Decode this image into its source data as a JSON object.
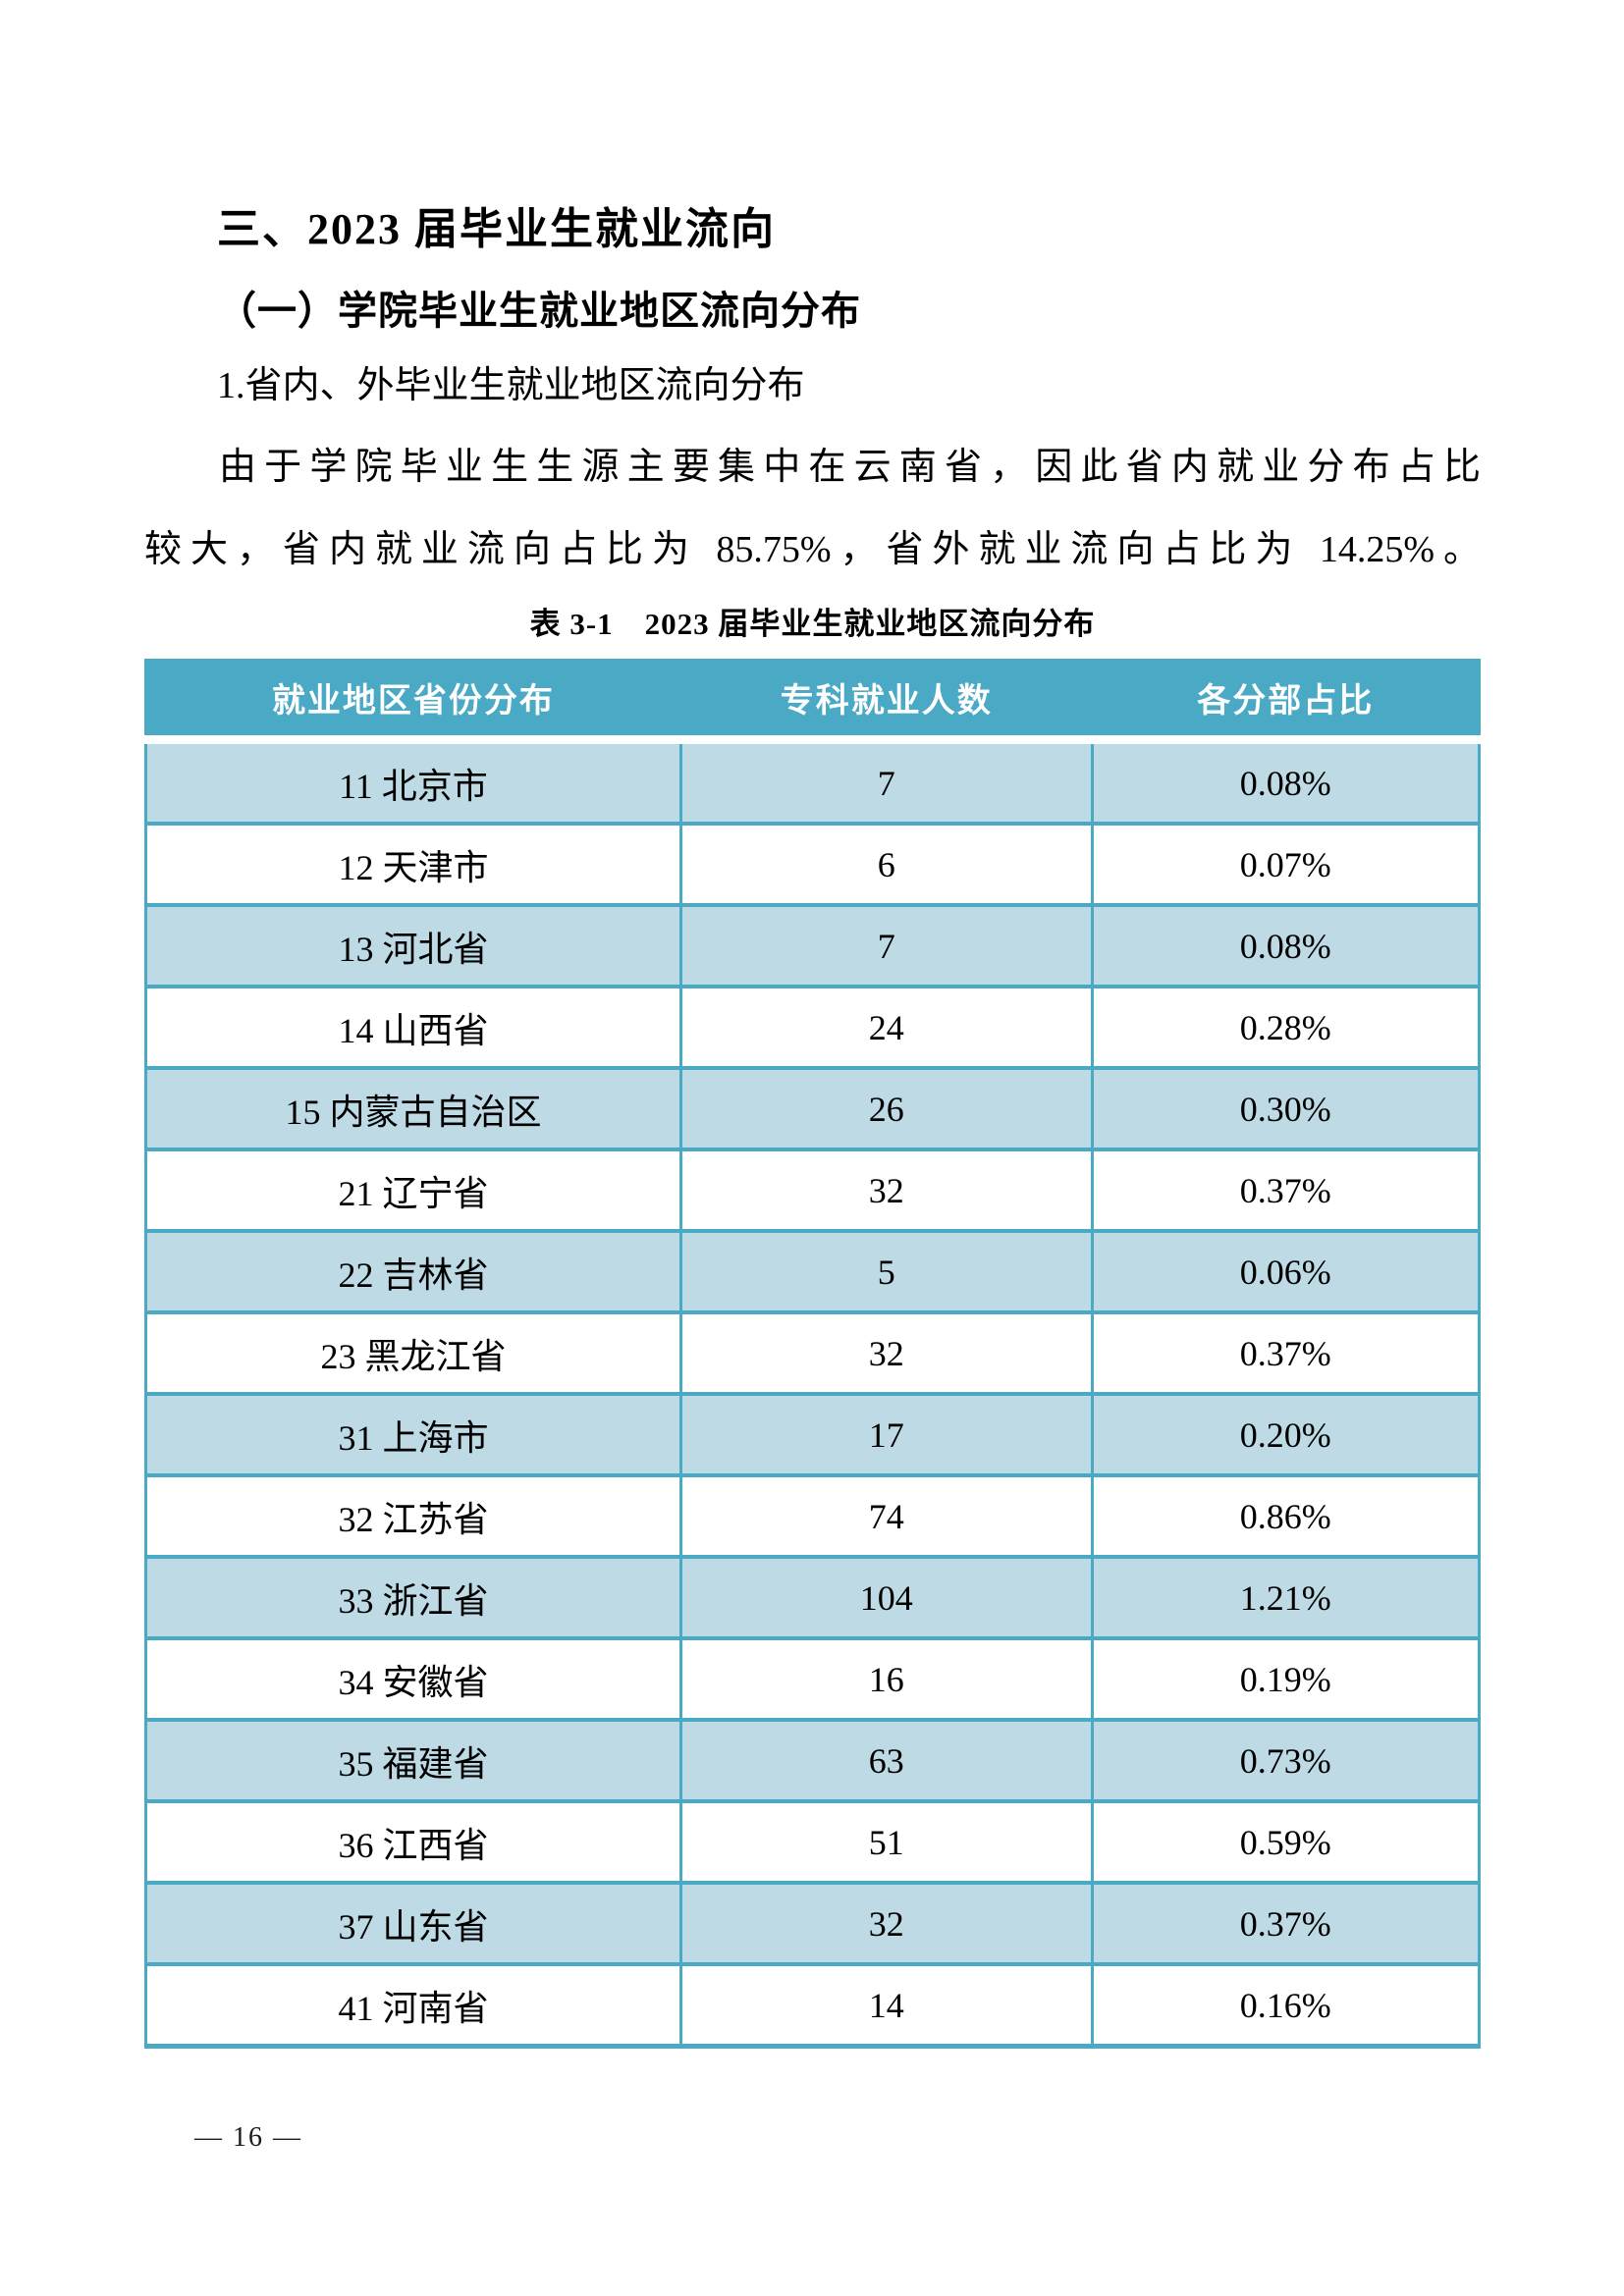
{
  "headings": {
    "h1": "三、2023 届毕业生就业流向",
    "h2": "（一）学院毕业生就业地区流向分布",
    "h3": "1.省内、外毕业生就业地区流向分布"
  },
  "paragraph": {
    "line1": "由于学院毕业生生源主要集中在云南省，因此省内就业分布占比",
    "line2": "较大，省内就业流向占比为 85.75%，省外就业流向占比为 14.25%。"
  },
  "table": {
    "caption": "表 3-1　2023 届毕业生就业地区流向分布",
    "columns": [
      "就业地区省份分布",
      "专科就业人数",
      "各分部占比"
    ],
    "rows": [
      [
        "11 北京市",
        "7",
        "0.08%"
      ],
      [
        "12 天津市",
        "6",
        "0.07%"
      ],
      [
        "13 河北省",
        "7",
        "0.08%"
      ],
      [
        "14 山西省",
        "24",
        "0.28%"
      ],
      [
        "15 内蒙古自治区",
        "26",
        "0.30%"
      ],
      [
        "21 辽宁省",
        "32",
        "0.37%"
      ],
      [
        "22 吉林省",
        "5",
        "0.06%"
      ],
      [
        "23 黑龙江省",
        "32",
        "0.37%"
      ],
      [
        "31 上海市",
        "17",
        "0.20%"
      ],
      [
        "32 江苏省",
        "74",
        "0.86%"
      ],
      [
        "33 浙江省",
        "104",
        "1.21%"
      ],
      [
        "34 安徽省",
        "16",
        "0.19%"
      ],
      [
        "35 福建省",
        "63",
        "0.73%"
      ],
      [
        "36 江西省",
        "51",
        "0.59%"
      ],
      [
        "37 山东省",
        "32",
        "0.37%"
      ],
      [
        "41 河南省",
        "14",
        "0.16%"
      ]
    ],
    "colors": {
      "header_bg": "#4aa9c4",
      "header_text": "#ffffff",
      "row_bg": "#ffffff",
      "row_alt_bg": "#bddae5",
      "border": "#4aa9c4"
    }
  },
  "page": {
    "number_label": "— 16 —"
  }
}
